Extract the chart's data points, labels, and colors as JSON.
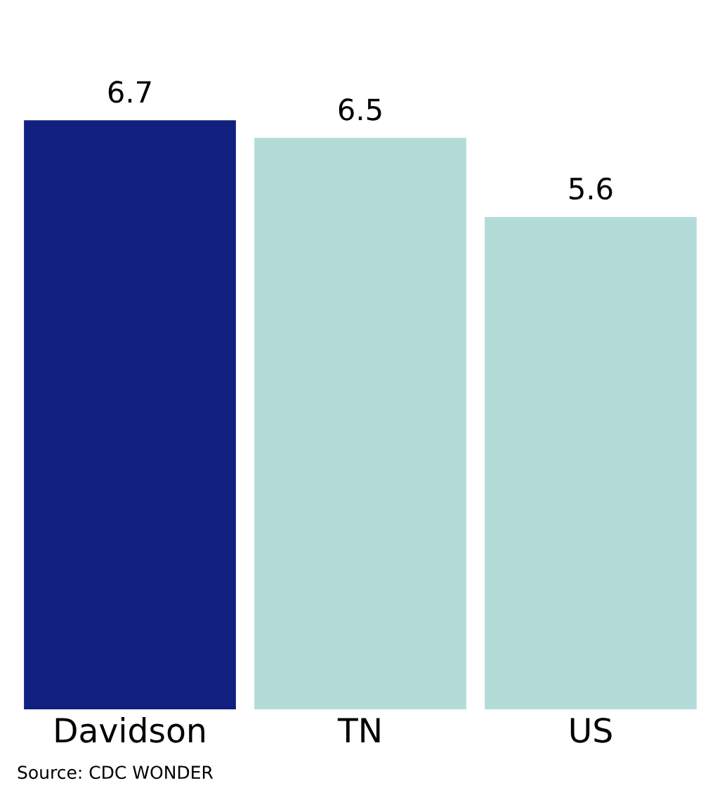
{
  "chart_data": {
    "type": "bar",
    "categories": [
      "Davidson",
      "TN",
      "US"
    ],
    "values": [
      6.7,
      6.5,
      5.6
    ],
    "colors": [
      "#111f80",
      "#b3dcd9",
      "#b3dcd9"
    ],
    "data_labels": true,
    "grid": false,
    "legend": false,
    "annotations": [
      "Source: CDC WONDER"
    ]
  }
}
